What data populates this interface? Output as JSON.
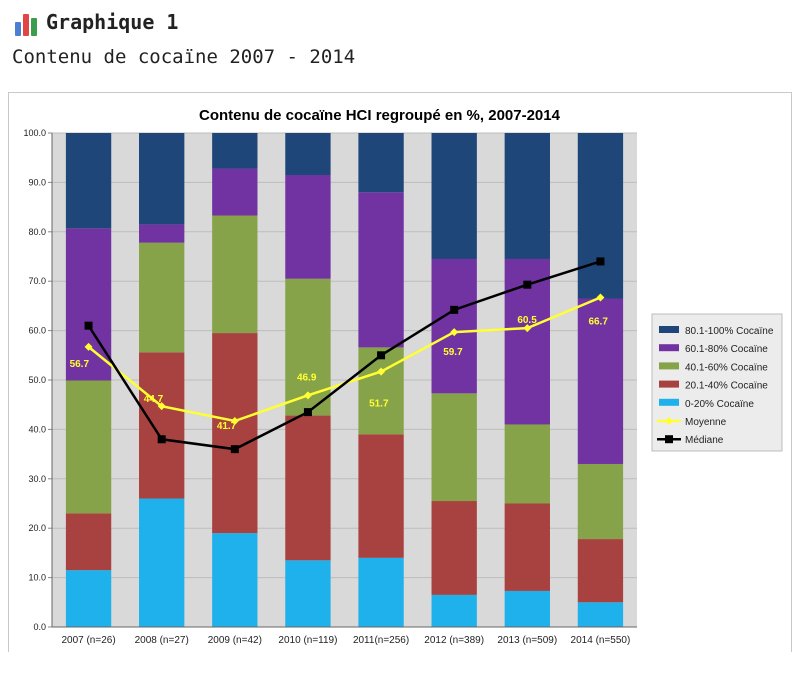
{
  "header": {
    "label": "Graphique 1",
    "subtitle": "Contenu de cocaïne 2007 - 2014",
    "icon": "bar-chart-icon",
    "icon_colors": [
      "#4a7fd1",
      "#e04646",
      "#3b9e4f"
    ]
  },
  "chart_data": {
    "type": "bar",
    "stacked": true,
    "title": "Contenu de cocaïne HCI regroupé en %, 2007-2014",
    "categories": [
      "2007 (n=26)",
      "2008 (n=27)",
      "2009 (n=42)",
      "2010 (n=119)",
      "2011(n=256)",
      "2012 (n=389)",
      "2013 (n=509)",
      "2014 (n=550)"
    ],
    "ylim": [
      0,
      100
    ],
    "yticks": [
      "0.0",
      "10.0",
      "20.0",
      "30.0",
      "40.0",
      "50.0",
      "60.0",
      "70.0",
      "80.0",
      "90.0",
      "100.0"
    ],
    "grid": true,
    "legend_position": "right",
    "series": [
      {
        "name": "0-20% Cocaïne",
        "color": "#1fb1ec",
        "values": [
          11.5,
          26.0,
          19.0,
          13.5,
          14.0,
          6.5,
          7.3,
          5.0
        ]
      },
      {
        "name": "20.1-40% Cocaïne",
        "color": "#a84240",
        "values": [
          11.5,
          29.6,
          40.5,
          29.3,
          25.0,
          19.0,
          17.7,
          12.8
        ]
      },
      {
        "name": "40.1-60% Cocaïne",
        "color": "#87a349",
        "values": [
          26.9,
          22.2,
          23.8,
          27.7,
          17.6,
          21.8,
          16.0,
          15.2
        ]
      },
      {
        "name": "60.1-80% Cocaïne",
        "color": "#7132a2",
        "values": [
          30.8,
          3.7,
          9.5,
          21.0,
          31.4,
          27.2,
          33.5,
          33.5
        ]
      },
      {
        "name": "80.1-100% Cocaïne",
        "color": "#1f4678",
        "values": [
          19.3,
          18.5,
          7.2,
          8.5,
          12.0,
          25.5,
          25.5,
          33.5
        ]
      }
    ],
    "lines": [
      {
        "name": "Moyenne",
        "color": "#ffff33",
        "marker": "diamond",
        "values": [
          56.7,
          44.7,
          41.7,
          46.9,
          51.7,
          59.7,
          60.5,
          66.7
        ],
        "labels": [
          "56.7",
          "44.7",
          "41.7",
          "46.9",
          "51.7",
          "59.7",
          "60.5",
          "66.7"
        ]
      },
      {
        "name": "Médiane",
        "color": "#000000",
        "marker": "square",
        "values": [
          61.0,
          38.0,
          36.0,
          43.5,
          55.0,
          64.2,
          69.3,
          74.0
        ]
      }
    ]
  }
}
